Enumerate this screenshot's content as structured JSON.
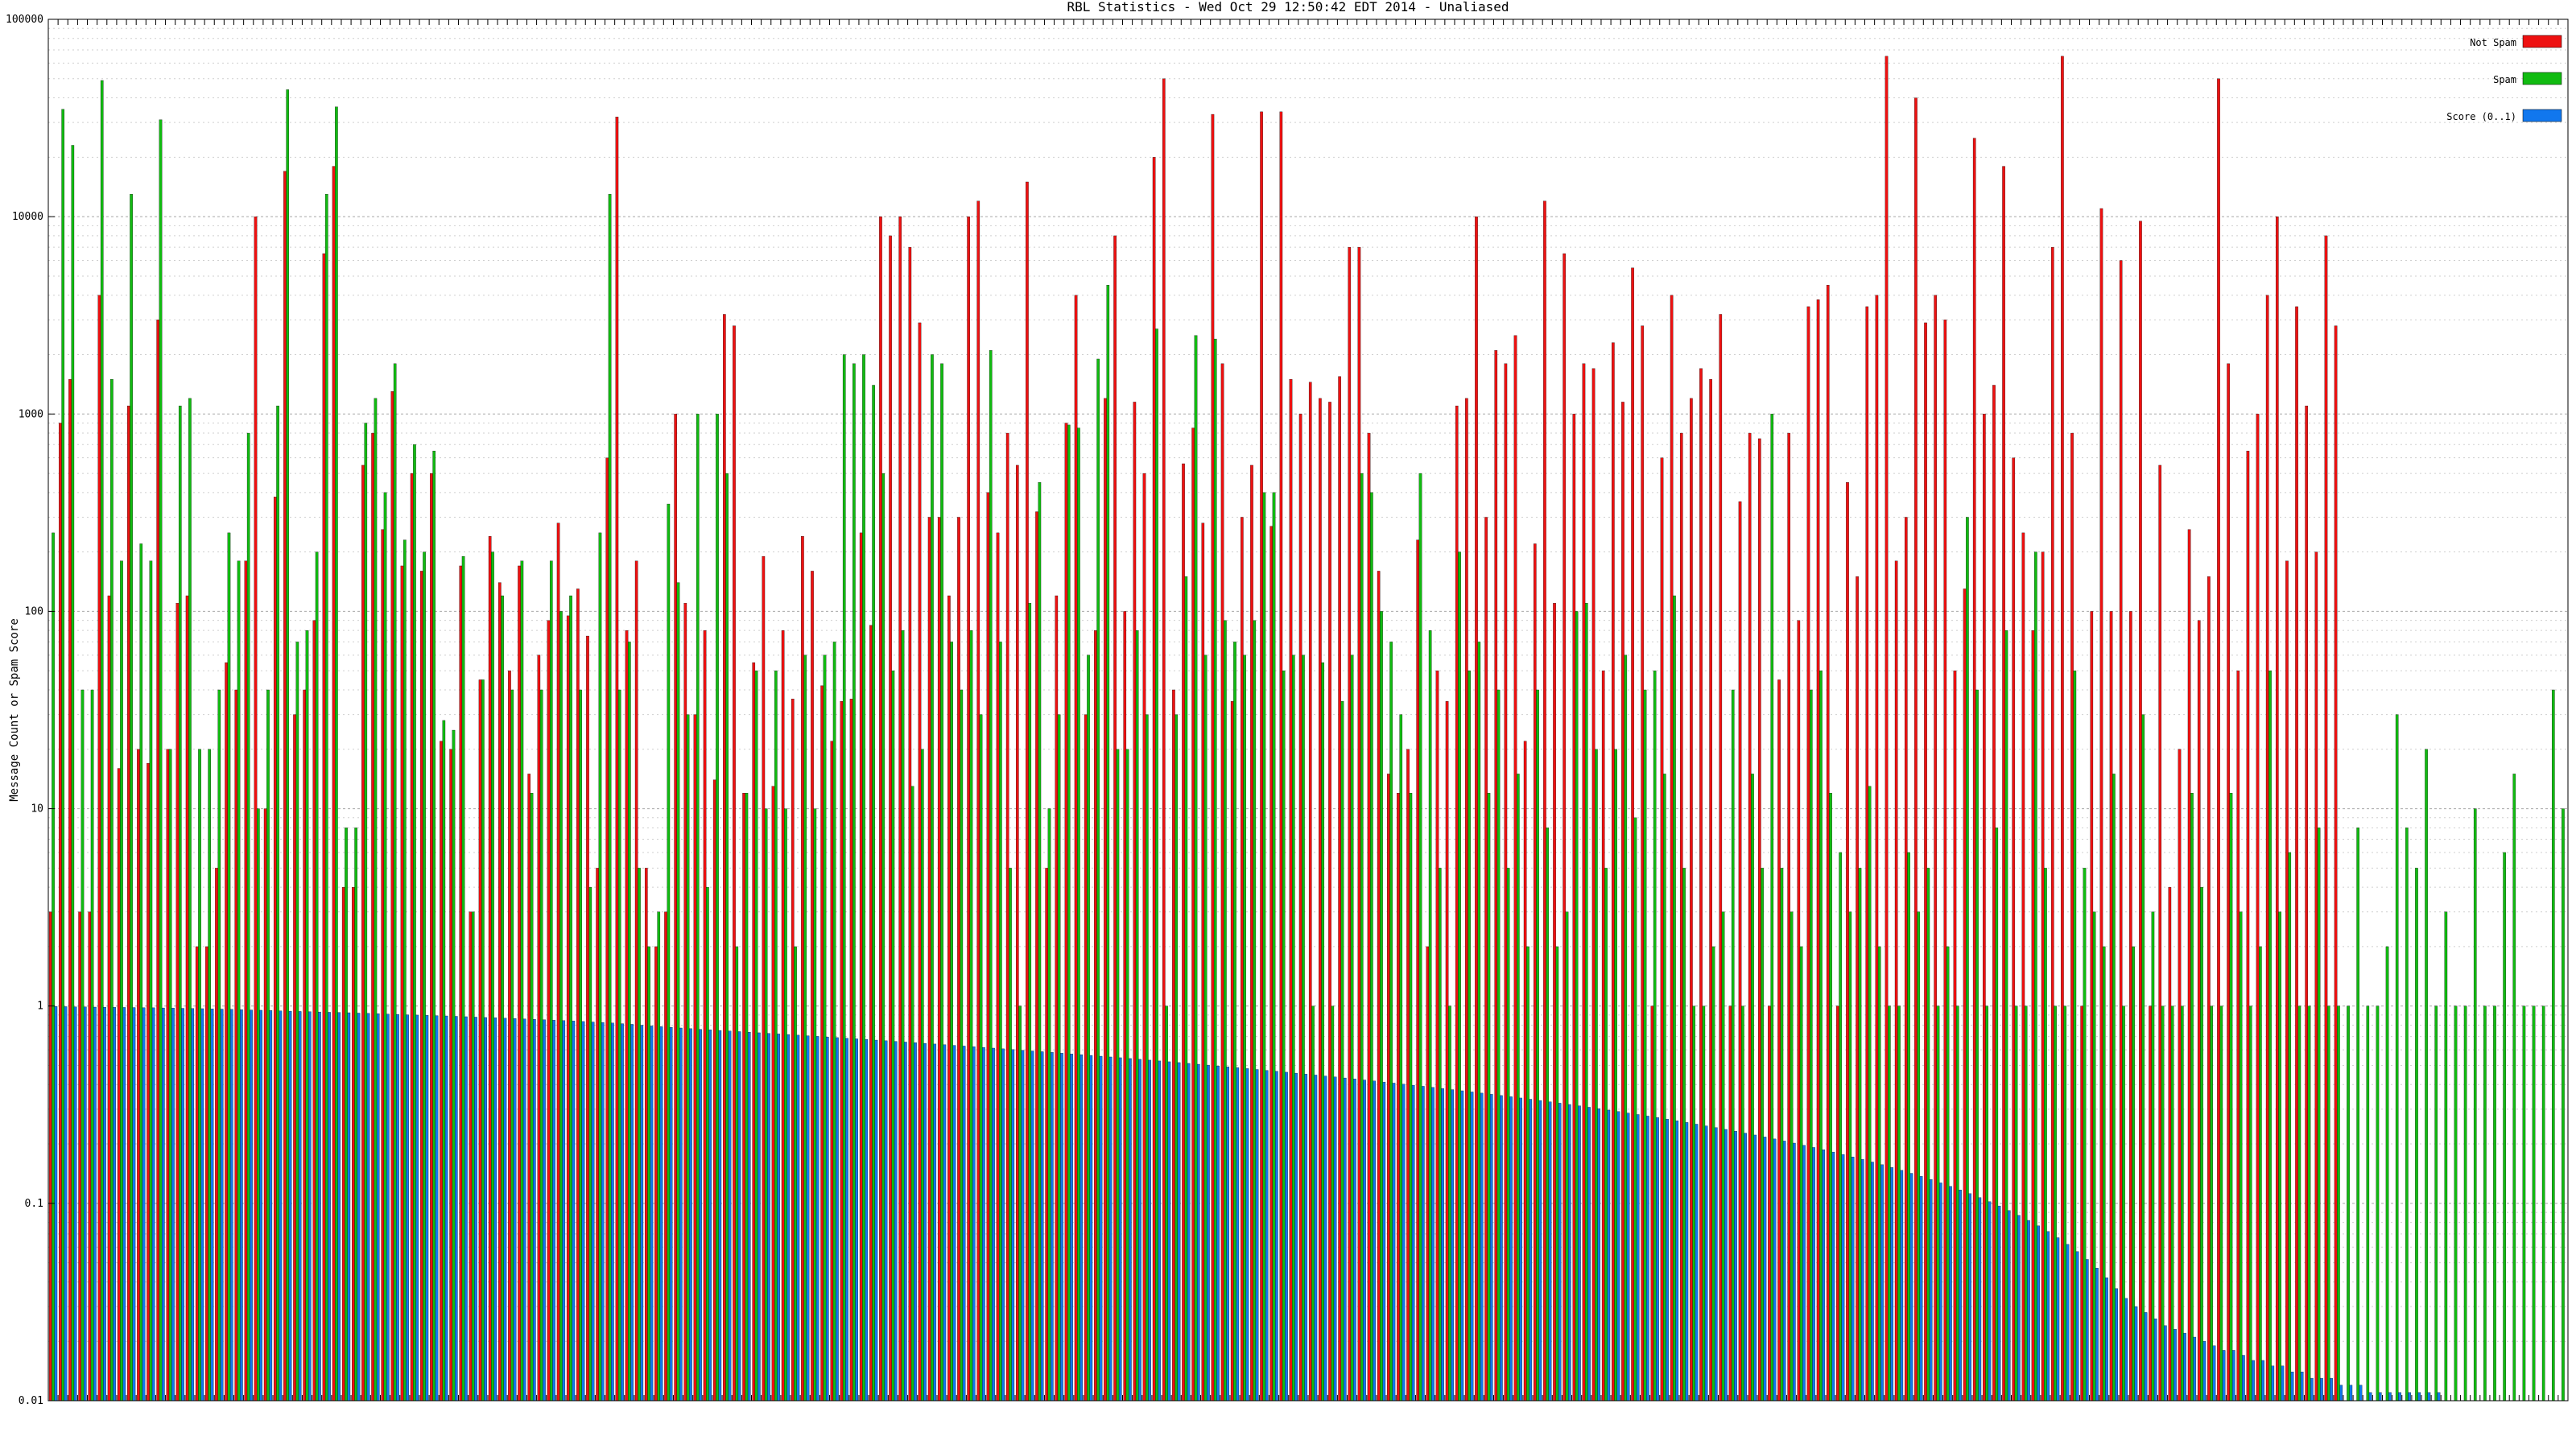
{
  "chart_data": {
    "type": "bar",
    "title": "RBL Statistics - Wed Oct 29 12:50:42 EDT 2014 - Unaliased",
    "xlabel": "",
    "ylabel": "Message Count or Spam Score",
    "y_scale": "log",
    "ylim": [
      0.01,
      100000
    ],
    "y_ticks": [
      {
        "value": 0.01,
        "label": "0.01"
      },
      {
        "value": 0.1,
        "label": "0.1"
      },
      {
        "value": 1,
        "label": "1"
      },
      {
        "value": 10,
        "label": "10"
      },
      {
        "value": 100,
        "label": "100"
      },
      {
        "value": 1000,
        "label": "1000"
      },
      {
        "value": 10000,
        "label": "10000"
      },
      {
        "value": 100000,
        "label": "100000"
      }
    ],
    "grid": true,
    "legend_position": "top-right",
    "series": [
      {
        "name": "Not Spam",
        "color": "#ee1111",
        "values": [
          3,
          900,
          1500,
          3,
          3,
          4000,
          120,
          16,
          1100,
          20,
          17,
          3000,
          20,
          110,
          120,
          2,
          2,
          5,
          55,
          40,
          180,
          10000,
          10,
          380,
          17000,
          30,
          40,
          90,
          6500,
          18000,
          4,
          4,
          550,
          800,
          260,
          1300,
          170,
          500,
          160,
          500,
          22,
          20,
          170,
          3,
          45,
          240,
          140,
          50,
          170,
          15,
          60,
          90,
          280,
          95,
          130,
          75,
          5,
          600,
          32000,
          80,
          180,
          5,
          2,
          3,
          1000,
          110,
          30,
          80,
          14,
          3200,
          2800,
          12,
          55,
          190,
          13,
          80,
          36,
          240,
          160,
          42,
          22,
          35,
          36,
          250,
          85,
          10000,
          8000,
          10000,
          7000,
          2900,
          300,
          300,
          120,
          300,
          10000,
          12000,
          400,
          250,
          800,
          550,
          15000,
          320,
          5,
          120,
          900,
          4000,
          30,
          80,
          1200,
          8000,
          100,
          1150,
          500,
          20000,
          50000,
          40,
          560,
          850,
          280,
          33000,
          1800,
          35,
          300,
          550,
          34000,
          270,
          34000,
          1500,
          1000,
          1450,
          1200,
          1150,
          1550,
          7000,
          7000,
          800,
          160,
          15,
          12,
          20,
          230,
          2,
          50,
          35,
          1100,
          1200,
          10000,
          300,
          2100,
          1800,
          2500,
          22,
          220,
          12000,
          110,
          6500,
          1000,
          1800,
          1700,
          50,
          2300,
          1150,
          5500,
          2800,
          1,
          600,
          4000,
          800,
          1200,
          1700,
          1500,
          3200,
          1,
          360,
          800,
          750,
          1,
          45,
          800,
          90,
          3500,
          3800,
          4500,
          1,
          450,
          150,
          3500,
          4000,
          65000,
          180,
          300,
          40000,
          2900,
          4000,
          3000,
          50,
          130,
          25000,
          1000,
          1400,
          18000,
          600,
          250,
          80,
          200,
          7000,
          65000,
          800,
          1,
          100,
          11000,
          100,
          6000,
          100,
          9500,
          1,
          550,
          4,
          20,
          260,
          90,
          150,
          50000,
          1800,
          50,
          650,
          1000,
          4000,
          10000,
          180,
          3500,
          1100,
          200,
          8000,
          2800
        ]
      },
      {
        "name": "Spam",
        "color": "#11bb11",
        "values": [
          250,
          35000,
          23000,
          40,
          40,
          49000,
          1500,
          180,
          13000,
          220,
          180,
          31000,
          20,
          1100,
          1200,
          20,
          20,
          40,
          250,
          180,
          800,
          10,
          40,
          1100,
          44000,
          70,
          80,
          200,
          13000,
          36000,
          8,
          8,
          900,
          1200,
          400,
          1800,
          230,
          700,
          200,
          650,
          28,
          25,
          190,
          3,
          45,
          200,
          120,
          40,
          180,
          12,
          40,
          180,
          100,
          120,
          40,
          4,
          250,
          13000,
          40,
          70,
          5,
          2,
          3,
          350,
          140,
          30,
          1000,
          4,
          1000,
          500,
          2,
          12,
          50,
          10,
          50,
          10,
          2,
          60,
          10,
          60,
          70,
          2000,
          1800,
          2000,
          1400,
          500,
          50,
          80,
          13,
          20,
          2000,
          1800,
          70,
          40,
          80,
          30,
          2100,
          70,
          5,
          1,
          110,
          450,
          10,
          30,
          880,
          850,
          60,
          1900,
          4500,
          20,
          20,
          80,
          30,
          2700,
          1,
          30,
          150,
          2500,
          60,
          2400,
          90,
          70,
          60,
          90,
          400,
          400,
          50,
          60,
          60,
          1,
          55,
          1,
          35,
          60,
          500,
          400,
          100,
          70,
          30,
          12,
          500,
          80,
          5,
          1,
          200,
          50,
          70,
          12,
          40,
          5,
          15,
          2,
          40,
          8,
          2,
          3,
          100,
          110,
          20,
          5,
          20,
          60,
          9,
          40,
          50,
          15,
          120,
          5,
          1,
          1,
          2,
          3,
          40,
          1,
          15,
          5,
          1000,
          5,
          3,
          2,
          40,
          50,
          12,
          6,
          3,
          5,
          13,
          2,
          1,
          1,
          6,
          3,
          5,
          1,
          2,
          1,
          300,
          40,
          1,
          8,
          80,
          1,
          1,
          200,
          5,
          1,
          1,
          50,
          5,
          3,
          2,
          15,
          1,
          2,
          30,
          3,
          1,
          1,
          1,
          12,
          4,
          1,
          1,
          12,
          3,
          1,
          2,
          50,
          3,
          6,
          1,
          1,
          8,
          1,
          1,
          1,
          8,
          1,
          1,
          2,
          30,
          8,
          5,
          20,
          1,
          3,
          1,
          1,
          10,
          1,
          1,
          6,
          15,
          1,
          1,
          1,
          40,
          10
        ]
      },
      {
        "name": "Score (0..1)",
        "color": "#1177ee",
        "values": [
          0.995,
          0.993,
          0.991,
          0.99,
          0.988,
          0.987,
          0.985,
          0.984,
          0.983,
          0.981,
          0.98,
          0.978,
          0.976,
          0.974,
          0.972,
          0.97,
          0.968,
          0.965,
          0.962,
          0.958,
          0.955,
          0.952,
          0.949,
          0.945,
          0.942,
          0.939,
          0.936,
          0.933,
          0.93,
          0.928,
          0.925,
          0.921,
          0.918,
          0.914,
          0.91,
          0.907,
          0.903,
          0.9,
          0.897,
          0.894,
          0.891,
          0.887,
          0.883,
          0.879,
          0.875,
          0.872,
          0.868,
          0.864,
          0.86,
          0.856,
          0.852,
          0.848,
          0.844,
          0.84,
          0.835,
          0.83,
          0.825,
          0.82,
          0.814,
          0.808,
          0.8,
          0.793,
          0.786,
          0.78,
          0.774,
          0.768,
          0.762,
          0.757,
          0.752,
          0.747,
          0.742,
          0.737,
          0.732,
          0.727,
          0.722,
          0.717,
          0.712,
          0.707,
          0.702,
          0.697,
          0.692,
          0.687,
          0.682,
          0.677,
          0.672,
          0.667,
          0.662,
          0.657,
          0.652,
          0.647,
          0.642,
          0.637,
          0.632,
          0.627,
          0.622,
          0.617,
          0.612,
          0.607,
          0.602,
          0.597,
          0.592,
          0.587,
          0.582,
          0.577,
          0.572,
          0.567,
          0.562,
          0.557,
          0.552,
          0.547,
          0.542,
          0.537,
          0.532,
          0.527,
          0.522,
          0.517,
          0.512,
          0.507,
          0.502,
          0.497,
          0.492,
          0.487,
          0.482,
          0.477,
          0.472,
          0.467,
          0.462,
          0.457,
          0.452,
          0.447,
          0.442,
          0.437,
          0.432,
          0.427,
          0.422,
          0.417,
          0.412,
          0.407,
          0.402,
          0.397,
          0.392,
          0.387,
          0.382,
          0.377,
          0.372,
          0.367,
          0.362,
          0.357,
          0.352,
          0.347,
          0.342,
          0.337,
          0.332,
          0.327,
          0.322,
          0.317,
          0.312,
          0.307,
          0.302,
          0.297,
          0.292,
          0.287,
          0.282,
          0.277,
          0.272,
          0.267,
          0.262,
          0.257,
          0.252,
          0.247,
          0.242,
          0.237,
          0.232,
          0.227,
          0.222,
          0.217,
          0.212,
          0.207,
          0.202,
          0.197,
          0.192,
          0.187,
          0.182,
          0.177,
          0.172,
          0.167,
          0.162,
          0.157,
          0.152,
          0.147,
          0.142,
          0.137,
          0.132,
          0.127,
          0.122,
          0.117,
          0.112,
          0.107,
          0.102,
          0.097,
          0.092,
          0.087,
          0.082,
          0.077,
          0.072,
          0.067,
          0.062,
          0.057,
          0.052,
          0.047,
          0.042,
          0.037,
          0.033,
          0.03,
          0.028,
          0.026,
          0.024,
          0.023,
          0.022,
          0.021,
          0.02,
          0.019,
          0.018,
          0.018,
          0.017,
          0.016,
          0.016,
          0.015,
          0.015,
          0.014,
          0.014,
          0.013,
          0.013,
          0.013,
          0.012,
          0.012,
          0.012,
          0.011,
          0.011,
          0.011,
          0.011,
          0.011,
          0.011,
          0.011,
          0.011,
          0.01,
          0.01,
          0.01,
          0.01
        ]
      }
    ]
  }
}
